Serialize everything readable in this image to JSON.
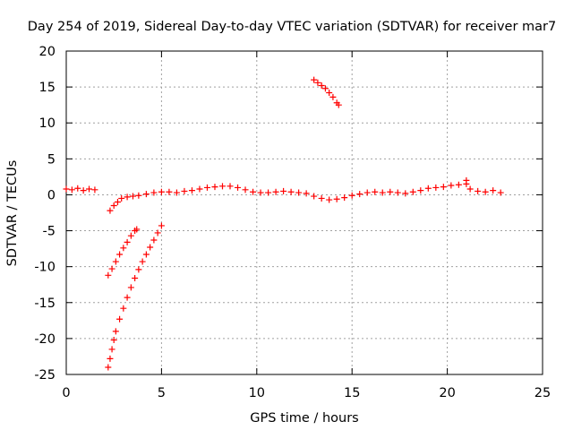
{
  "chart_data": {
    "type": "scatter",
    "title": "Day 254 of 2019, Sidereal Day-to-day VTEC variation (SDTVAR) for receiver mar7",
    "xlabel": "GPS time / hours",
    "ylabel": "SDTVAR / TECUs",
    "xlim": [
      0,
      25
    ],
    "ylim": [
      -25,
      20
    ],
    "xticks": [
      0,
      5,
      10,
      15,
      20,
      25
    ],
    "yticks": [
      -25,
      -20,
      -15,
      -10,
      -5,
      0,
      5,
      10,
      15,
      20
    ],
    "grid": true,
    "marker": "+",
    "color": "#ff0000",
    "series": [
      {
        "points": [
          [
            0.0,
            0.8
          ],
          [
            0.3,
            0.7
          ],
          [
            0.6,
            0.9
          ],
          [
            0.9,
            0.6
          ],
          [
            1.2,
            0.8
          ],
          [
            1.5,
            0.7
          ],
          [
            2.3,
            -2.2
          ],
          [
            2.5,
            -1.5
          ],
          [
            2.7,
            -1.0
          ],
          [
            2.9,
            -0.5
          ],
          [
            3.2,
            -0.3
          ],
          [
            3.5,
            -0.2
          ],
          [
            3.8,
            -0.1
          ],
          [
            4.2,
            0.1
          ],
          [
            4.6,
            0.3
          ],
          [
            5.0,
            0.4
          ],
          [
            5.4,
            0.4
          ],
          [
            5.8,
            0.3
          ],
          [
            6.2,
            0.5
          ],
          [
            6.6,
            0.6
          ],
          [
            7.0,
            0.8
          ],
          [
            7.4,
            1.0
          ],
          [
            7.8,
            1.1
          ],
          [
            8.2,
            1.2
          ],
          [
            8.6,
            1.2
          ],
          [
            9.0,
            1.0
          ],
          [
            9.4,
            0.7
          ],
          [
            9.8,
            0.4
          ],
          [
            10.2,
            0.3
          ],
          [
            10.6,
            0.3
          ],
          [
            11.0,
            0.4
          ],
          [
            11.4,
            0.5
          ],
          [
            11.8,
            0.4
          ],
          [
            12.2,
            0.3
          ],
          [
            12.6,
            0.2
          ],
          [
            13.0,
            -0.2
          ],
          [
            13.4,
            -0.5
          ],
          [
            13.8,
            -0.7
          ],
          [
            14.2,
            -0.6
          ],
          [
            14.6,
            -0.4
          ],
          [
            15.0,
            -0.1
          ],
          [
            15.4,
            0.1
          ],
          [
            15.8,
            0.3
          ],
          [
            16.2,
            0.4
          ],
          [
            16.6,
            0.3
          ],
          [
            17.0,
            0.4
          ],
          [
            17.4,
            0.3
          ],
          [
            17.8,
            0.2
          ],
          [
            18.2,
            0.4
          ],
          [
            18.6,
            0.6
          ],
          [
            19.0,
            0.9
          ],
          [
            19.4,
            1.0
          ],
          [
            19.8,
            1.1
          ],
          [
            20.2,
            1.3
          ],
          [
            20.6,
            1.4
          ],
          [
            21.0,
            1.5
          ],
          [
            21.2,
            0.8
          ],
          [
            21.6,
            0.5
          ],
          [
            22.0,
            0.4
          ],
          [
            22.4,
            0.6
          ],
          [
            22.8,
            0.3
          ],
          [
            21.0,
            2.0
          ]
        ]
      },
      {
        "points": [
          [
            2.2,
            -11.2
          ],
          [
            2.4,
            -10.3
          ],
          [
            2.6,
            -9.3
          ],
          [
            2.8,
            -8.3
          ],
          [
            3.0,
            -7.4
          ],
          [
            3.2,
            -6.6
          ],
          [
            3.4,
            -5.7
          ],
          [
            3.6,
            -5.0
          ],
          [
            3.7,
            -4.8
          ]
        ]
      },
      {
        "points": [
          [
            2.2,
            -24.0
          ],
          [
            2.3,
            -22.8
          ],
          [
            2.4,
            -21.5
          ],
          [
            2.5,
            -20.2
          ],
          [
            2.6,
            -19.0
          ],
          [
            2.8,
            -17.3
          ],
          [
            3.0,
            -15.8
          ],
          [
            3.2,
            -14.3
          ],
          [
            3.4,
            -12.9
          ],
          [
            3.6,
            -11.6
          ],
          [
            3.8,
            -10.4
          ],
          [
            4.0,
            -9.3
          ],
          [
            4.2,
            -8.3
          ],
          [
            4.4,
            -7.3
          ],
          [
            4.6,
            -6.3
          ],
          [
            4.8,
            -5.3
          ],
          [
            5.0,
            -4.3
          ]
        ]
      },
      {
        "points": [
          [
            13.0,
            16.0
          ],
          [
            13.2,
            15.6
          ],
          [
            13.4,
            15.2
          ],
          [
            13.6,
            14.8
          ],
          [
            13.8,
            14.2
          ],
          [
            14.0,
            13.6
          ],
          [
            14.2,
            12.8
          ],
          [
            14.3,
            12.5
          ]
        ]
      }
    ]
  }
}
